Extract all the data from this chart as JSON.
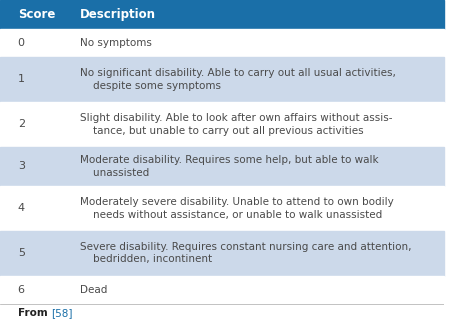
{
  "header_bg": "#1a6fa8",
  "header_text_color": "#ffffff",
  "header_score": "Score",
  "header_desc": "Description",
  "row_colors": [
    "#ffffff",
    "#ccd9ea",
    "#ffffff",
    "#ccd9ea",
    "#ffffff",
    "#ccd9ea",
    "#ffffff"
  ],
  "scores": [
    "0",
    "1",
    "2",
    "3",
    "4",
    "5",
    "6"
  ],
  "descriptions": [
    "No symptoms",
    "No significant disability. Able to carry out all usual activities,\n    despite some symptoms",
    "Slight disability. Able to look after own affairs without assis-\n    tance, but unable to carry out all previous activities",
    "Moderate disability. Requires some help, but able to walk\n    unassisted",
    "Moderately severe disability. Unable to attend to own bodily\n    needs without assistance, or unable to walk unassisted",
    "Severe disability. Requires constant nursing care and attention,\n    bedridden, incontinent",
    "Dead"
  ],
  "footer_text": "From [58]",
  "footer_link_color": "#1a6fa8",
  "text_color": "#4a4a4a",
  "figsize": [
    4.74,
    3.23
  ],
  "dpi": 100
}
